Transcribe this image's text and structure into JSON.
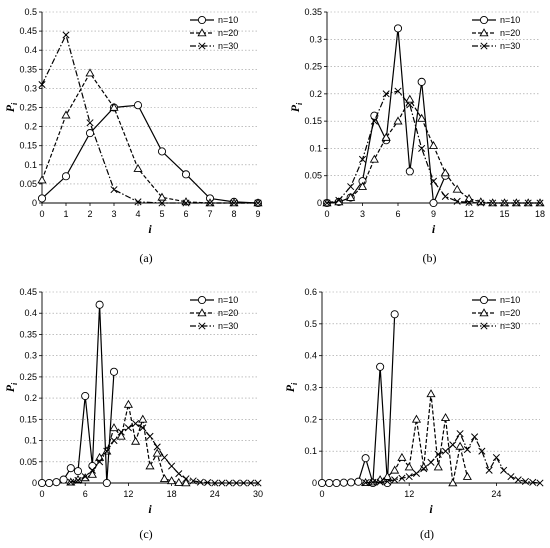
{
  "chart_data": [
    {
      "type": "line",
      "panel_label": "(a)",
      "xlabel": "i",
      "ylabel": "P",
      "ylabel_sub": "i",
      "xlim": [
        0,
        9
      ],
      "xticks": [
        0,
        1,
        2,
        3,
        4,
        5,
        6,
        7,
        8,
        9
      ],
      "ylim": [
        0,
        0.5
      ],
      "yticks": [
        0,
        0.05,
        0.1,
        0.15,
        0.2,
        0.25,
        0.3,
        0.35,
        0.4,
        0.45,
        0.5
      ],
      "ytick_labels": [
        "0",
        "0.05",
        "0.1",
        "0.15",
        "0.2",
        "0.25",
        "0.3",
        "0.35",
        "0.4",
        "0.45",
        "0.5"
      ],
      "xtick_labels": [
        "0",
        "1",
        "2",
        "3",
        "4",
        "5",
        "6",
        "7",
        "8",
        "9"
      ],
      "grid": "horizontal-dotted",
      "legend": "top-right",
      "series": [
        {
          "name": "n=10",
          "marker": "circle",
          "dash": "solid",
          "x": [
            0,
            1,
            2,
            3,
            4,
            5,
            6,
            7,
            8,
            9
          ],
          "y": [
            0.012,
            0.07,
            0.183,
            0.25,
            0.256,
            0.135,
            0.075,
            0.012,
            0.003,
            0.0
          ]
        },
        {
          "name": "n=20",
          "marker": "triangle",
          "dash": "dashed",
          "x": [
            0,
            1,
            2,
            3,
            4,
            5,
            6,
            7,
            8,
            9
          ],
          "y": [
            0.06,
            0.23,
            0.34,
            0.25,
            0.09,
            0.015,
            0.003,
            0.0,
            0.0,
            0.0
          ]
        },
        {
          "name": "n=30",
          "marker": "cross",
          "dash": "dashdot",
          "x": [
            0,
            1,
            2,
            3,
            4,
            5,
            6,
            7,
            8,
            9
          ],
          "y": [
            0.31,
            0.44,
            0.21,
            0.035,
            0.003,
            0.0,
            0.0,
            0.0,
            0.0,
            0.0
          ]
        }
      ]
    },
    {
      "type": "line",
      "panel_label": "(b)",
      "xlabel": "i",
      "ylabel": "P",
      "ylabel_sub": "i",
      "xlim": [
        0,
        18
      ],
      "xticks": [
        0,
        3,
        6,
        9,
        12,
        15,
        18
      ],
      "xtick_labels": [
        "0",
        "3",
        "6",
        "9",
        "12",
        "15",
        "18"
      ],
      "ylim": [
        0,
        0.35
      ],
      "yticks": [
        0,
        0.05,
        0.1,
        0.15,
        0.2,
        0.25,
        0.3,
        0.35
      ],
      "ytick_labels": [
        "0",
        "0.05",
        "0.1",
        "0.15",
        "0.2",
        "0.25",
        "0.3",
        "0.35"
      ],
      "grid": "horizontal-dotted",
      "legend": "top-right",
      "series": [
        {
          "name": "n=10",
          "marker": "circle",
          "dash": "solid",
          "x": [
            0,
            1,
            2,
            3,
            4,
            5,
            6,
            7,
            8,
            9,
            10
          ],
          "y": [
            0,
            0.002,
            0.01,
            0.04,
            0.16,
            0.115,
            0.32,
            0.058,
            0.222,
            0.0,
            0.05
          ]
        },
        {
          "name": "n=20",
          "marker": "triangle",
          "dash": "dashed",
          "x": [
            0,
            1,
            2,
            3,
            4,
            5,
            6,
            7,
            8,
            9,
            10,
            11,
            12,
            13,
            14,
            15,
            16,
            17,
            18
          ],
          "y": [
            0,
            0.002,
            0.01,
            0.03,
            0.08,
            0.12,
            0.15,
            0.19,
            0.155,
            0.105,
            0.055,
            0.025,
            0.008,
            0.002,
            0,
            0,
            0,
            0,
            0
          ]
        },
        {
          "name": "n=30",
          "marker": "cross",
          "dash": "dashdot",
          "x": [
            0,
            1,
            2,
            3,
            4,
            5,
            6,
            7,
            8,
            9,
            10,
            11,
            12,
            13,
            14,
            15,
            16,
            17,
            18
          ],
          "y": [
            0,
            0.005,
            0.03,
            0.08,
            0.15,
            0.2,
            0.205,
            0.18,
            0.1,
            0.04,
            0.012,
            0.003,
            0.001,
            0,
            0,
            0,
            0,
            0,
            0
          ]
        }
      ]
    },
    {
      "type": "line",
      "panel_label": "(c)",
      "xlabel": "i",
      "ylabel": "P",
      "ylabel_sub": "i",
      "xlim": [
        0,
        30
      ],
      "xticks": [
        0,
        6,
        12,
        18,
        24,
        30
      ],
      "xtick_labels": [
        "0",
        "6",
        "12",
        "18",
        "24",
        "30"
      ],
      "ylim": [
        0,
        0.45
      ],
      "yticks": [
        0,
        0.05,
        0.1,
        0.15,
        0.2,
        0.25,
        0.3,
        0.35,
        0.4,
        0.45
      ],
      "ytick_labels": [
        "0",
        "0.05",
        "0.1",
        "0.15",
        "0.2",
        "0.25",
        "0.3",
        "0.35",
        "0.4",
        "0.45"
      ],
      "grid": "horizontal-dotted",
      "legend": "top-right",
      "series": [
        {
          "name": "n=10",
          "marker": "circle",
          "dash": "solid",
          "x": [
            0,
            1,
            2,
            3,
            4,
            5,
            6,
            7,
            8,
            9,
            10
          ],
          "y": [
            0,
            0,
            0.002,
            0.008,
            0.035,
            0.028,
            0.205,
            0.04,
            0.42,
            0.0,
            0.262
          ]
        },
        {
          "name": "n=20",
          "marker": "triangle",
          "dash": "dashed",
          "x": [
            4,
            5,
            6,
            7,
            8,
            9,
            10,
            11,
            12,
            13,
            14,
            15,
            16,
            17,
            18,
            19,
            20
          ],
          "y": [
            0.002,
            0.008,
            0.012,
            0.02,
            0.06,
            0.075,
            0.13,
            0.11,
            0.185,
            0.098,
            0.15,
            0.04,
            0.07,
            0.01,
            0.005,
            0.001,
            0
          ]
        },
        {
          "name": "n=30",
          "marker": "cross",
          "dash": "dashdot",
          "x": [
            4,
            5,
            6,
            7,
            8,
            9,
            10,
            11,
            12,
            13,
            14,
            15,
            16,
            17,
            18,
            19,
            20,
            21,
            22,
            23,
            24,
            25,
            26,
            27,
            28,
            29,
            30
          ],
          "y": [
            0.002,
            0.006,
            0.015,
            0.03,
            0.05,
            0.075,
            0.1,
            0.12,
            0.13,
            0.14,
            0.13,
            0.11,
            0.085,
            0.06,
            0.04,
            0.022,
            0.01,
            0.005,
            0.002,
            0.001,
            0,
            0,
            0,
            0,
            0,
            0,
            0
          ]
        }
      ]
    },
    {
      "type": "line",
      "panel_label": "(d)",
      "xlabel": "i",
      "ylabel": "P",
      "ylabel_sub": "i",
      "xlim": [
        0,
        30
      ],
      "xticks": [
        0,
        12,
        24
      ],
      "xtick_labels": [
        "0",
        "12",
        "24"
      ],
      "ylim": [
        0,
        0.6
      ],
      "yticks": [
        0,
        0.1,
        0.2,
        0.3,
        0.4,
        0.5,
        0.6
      ],
      "ytick_labels": [
        "0",
        "0.1",
        "0.2",
        "0.3",
        "0.4",
        "0.5",
        "0.6"
      ],
      "grid": "horizontal-dotted",
      "legend": "top-right",
      "series": [
        {
          "name": "n=10",
          "marker": "circle",
          "dash": "solid",
          "x": [
            0,
            1,
            2,
            3,
            4,
            5,
            6,
            7,
            8,
            9,
            10
          ],
          "y": [
            0,
            0,
            0,
            0.001,
            0.002,
            0.004,
            0.078,
            0.0,
            0.365,
            0.0,
            0.53
          ]
        },
        {
          "name": "n=20",
          "marker": "triangle",
          "dash": "dashed",
          "x": [
            6,
            7,
            8,
            9,
            10,
            11,
            12,
            13,
            14,
            15,
            16,
            17,
            18,
            19,
            20
          ],
          "y": [
            0.001,
            0.003,
            0.01,
            0.02,
            0.04,
            0.08,
            0.05,
            0.2,
            0.05,
            0.28,
            0.05,
            0.205,
            0.0,
            0.115,
            0.02
          ]
        },
        {
          "name": "n=30",
          "marker": "cross",
          "dash": "dashdot",
          "x": [
            6,
            7,
            8,
            9,
            10,
            11,
            12,
            13,
            14,
            15,
            16,
            17,
            18,
            19,
            20,
            21,
            22,
            23,
            24,
            25,
            26,
            27,
            28,
            29,
            30
          ],
          "y": [
            0.001,
            0.002,
            0.003,
            0.005,
            0.01,
            0.015,
            0.02,
            0.03,
            0.045,
            0.065,
            0.09,
            0.1,
            0.12,
            0.155,
            0.105,
            0.145,
            0.1,
            0.04,
            0.08,
            0.04,
            0.02,
            0.01,
            0.005,
            0.002,
            0
          ]
        }
      ]
    }
  ]
}
